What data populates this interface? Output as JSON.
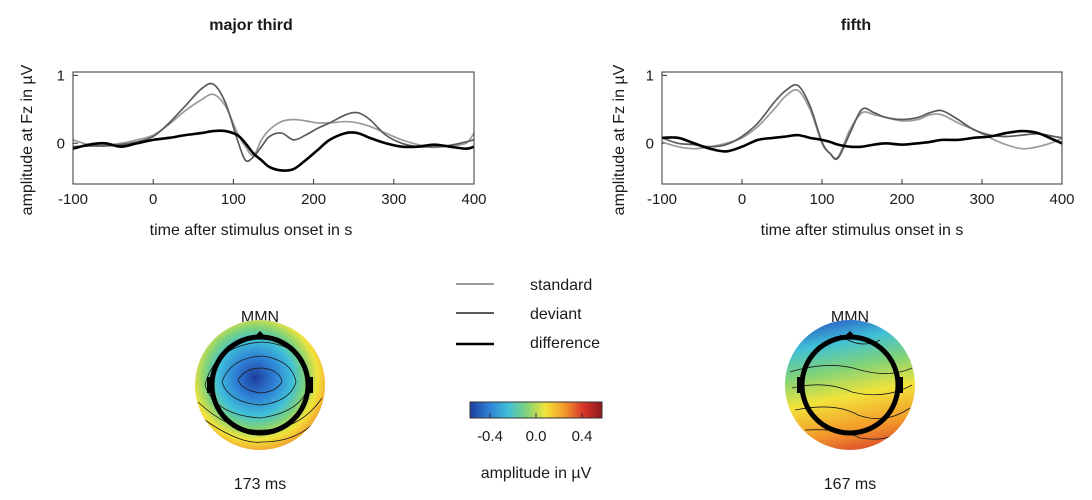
{
  "chart_data": [
    {
      "type": "line",
      "title": "major third",
      "xlabel": "time after stimulus onset in s",
      "ylabel": "amplitude at Fz in µV",
      "xlim": [
        -100,
        400
      ],
      "ylim": [
        -0.6,
        1.05
      ],
      "xticks": [
        "-100",
        "0",
        "100",
        "200",
        "300",
        "400"
      ],
      "yticks": [
        "0",
        "1"
      ],
      "x": [
        -100,
        -80,
        -60,
        -40,
        -20,
        0,
        20,
        40,
        60,
        75,
        90,
        105,
        115,
        125,
        135,
        145,
        160,
        175,
        190,
        205,
        220,
        240,
        255,
        270,
        290,
        310,
        330,
        350,
        370,
        390,
        400
      ],
      "series": [
        {
          "name": "standard",
          "color": "#9b9b9b",
          "values": [
            0.05,
            -0.02,
            -0.03,
            0.0,
            0.05,
            0.12,
            0.28,
            0.48,
            0.64,
            0.72,
            0.55,
            0.15,
            -0.05,
            -0.18,
            0.05,
            0.2,
            0.32,
            0.35,
            0.33,
            0.3,
            0.3,
            0.32,
            0.3,
            0.25,
            0.15,
            0.05,
            -0.02,
            -0.06,
            -0.04,
            0.0,
            0.15
          ]
        },
        {
          "name": "deviant",
          "color": "#5a5a5a",
          "values": [
            -0.05,
            -0.04,
            -0.04,
            -0.02,
            0.02,
            0.1,
            0.3,
            0.55,
            0.8,
            0.87,
            0.6,
            0.05,
            -0.25,
            -0.2,
            -0.05,
            0.1,
            0.15,
            0.05,
            0.12,
            0.22,
            0.3,
            0.42,
            0.45,
            0.35,
            0.12,
            0.0,
            -0.05,
            -0.05,
            -0.03,
            0.02,
            0.05
          ]
        },
        {
          "name": "difference",
          "color": "#000000",
          "values": [
            -0.08,
            -0.02,
            0.0,
            -0.05,
            0.0,
            0.05,
            0.08,
            0.12,
            0.15,
            0.18,
            0.18,
            0.12,
            0.0,
            -0.15,
            -0.25,
            -0.35,
            -0.4,
            -0.38,
            -0.25,
            -0.1,
            0.05,
            0.15,
            0.15,
            0.08,
            0.0,
            -0.05,
            -0.05,
            -0.02,
            -0.05,
            -0.08,
            -0.05
          ]
        }
      ]
    },
    {
      "type": "line",
      "title": "fifth",
      "xlabel": "time after stimulus onset in s",
      "ylabel": "amplitude at Fz in µV",
      "xlim": [
        -100,
        400
      ],
      "ylim": [
        -0.6,
        1.05
      ],
      "xticks": [
        "-100",
        "0",
        "100",
        "200",
        "300",
        "400"
      ],
      "yticks": [
        "0",
        "1"
      ],
      "x": [
        -100,
        -80,
        -60,
        -40,
        -20,
        0,
        20,
        40,
        55,
        70,
        85,
        100,
        110,
        120,
        135,
        150,
        165,
        180,
        200,
        220,
        235,
        250,
        270,
        290,
        310,
        330,
        350,
        370,
        390,
        400
      ],
      "series": [
        {
          "name": "standard",
          "color": "#9b9b9b",
          "values": [
            0.02,
            -0.05,
            -0.08,
            -0.05,
            0.0,
            0.08,
            0.25,
            0.5,
            0.7,
            0.78,
            0.5,
            0.0,
            -0.15,
            -0.2,
            0.2,
            0.45,
            0.42,
            0.38,
            0.33,
            0.35,
            0.42,
            0.42,
            0.3,
            0.2,
            0.08,
            -0.02,
            -0.08,
            -0.05,
            0.02,
            0.08
          ]
        },
        {
          "name": "deviant",
          "color": "#5a5a5a",
          "values": [
            0.08,
            0.0,
            -0.02,
            -0.05,
            -0.02,
            0.1,
            0.3,
            0.6,
            0.78,
            0.85,
            0.55,
            0.02,
            -0.15,
            -0.22,
            0.15,
            0.5,
            0.45,
            0.38,
            0.35,
            0.38,
            0.45,
            0.48,
            0.35,
            0.2,
            0.12,
            0.1,
            0.12,
            0.14,
            0.1,
            0.08
          ]
        },
        {
          "name": "difference",
          "color": "#000000",
          "values": [
            0.08,
            0.08,
            0.0,
            -0.08,
            -0.12,
            -0.05,
            0.05,
            0.08,
            0.1,
            0.12,
            0.08,
            0.05,
            0.02,
            -0.02,
            -0.05,
            -0.05,
            -0.02,
            0.0,
            -0.02,
            0.0,
            0.02,
            0.05,
            0.05,
            0.08,
            0.1,
            0.15,
            0.18,
            0.15,
            0.05,
            0.0
          ]
        }
      ]
    }
  ],
  "legend": [
    {
      "label": "standard",
      "color": "#9b9b9b"
    },
    {
      "label": "deviant",
      "color": "#5a5a5a"
    },
    {
      "label": "difference",
      "color": "#000000"
    }
  ],
  "topomaps": [
    {
      "title": "MMN",
      "time": "173 ms"
    },
    {
      "title": "MMN",
      "time": "167 ms"
    }
  ],
  "colorbar": {
    "ticks": [
      "-0.4",
      "0.0",
      "0.4"
    ],
    "label": "amplitude in µV",
    "colors": [
      "#1d3d9c",
      "#2e7fd6",
      "#3fbfd8",
      "#7fd27a",
      "#f1e33a",
      "#f39a2b",
      "#d9342b",
      "#8e1a1a"
    ]
  }
}
